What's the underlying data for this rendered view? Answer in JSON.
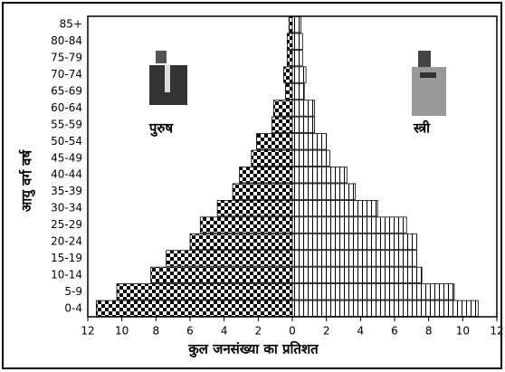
{
  "chart_data": {
    "type": "pyramid",
    "x_label": "कुल जनसंख्या का प्रतिशत",
    "y_label": "आयु वर्ग वर्ष",
    "categories": [
      "0-4",
      "5-9",
      "10-14",
      "15-19",
      "20-24",
      "25-29",
      "30-34",
      "35-39",
      "40-44",
      "45-49",
      "50-54",
      "55-59",
      "60-64",
      "65-69",
      "70-74",
      "75-79",
      "80-84",
      "85+"
    ],
    "series": [
      {
        "name": "पुरुष",
        "color": "#000000",
        "values": [
          11.5,
          10.3,
          8.3,
          7.4,
          6.0,
          5.4,
          4.4,
          3.5,
          3.1,
          2.4,
          2.1,
          1.2,
          1.1,
          0.4,
          0.5,
          0.3,
          0.3,
          0.2
        ]
      },
      {
        "name": "स्त्री",
        "color": "#000000",
        "values": [
          10.9,
          9.5,
          7.6,
          7.3,
          7.3,
          6.7,
          5.0,
          3.7,
          3.2,
          2.2,
          2.0,
          1.3,
          1.3,
          0.7,
          0.8,
          0.6,
          0.6,
          0.5
        ]
      }
    ],
    "xlim": [
      -12,
      12
    ],
    "xticks": [
      {
        "value": -12,
        "label": "12"
      },
      {
        "value": -10,
        "label": "10"
      },
      {
        "value": -8,
        "label": "8"
      },
      {
        "value": -6,
        "label": "6"
      },
      {
        "value": -4,
        "label": "4"
      },
      {
        "value": -2,
        "label": "2"
      },
      0,
      2,
      4,
      6,
      8,
      10,
      12
    ]
  }
}
